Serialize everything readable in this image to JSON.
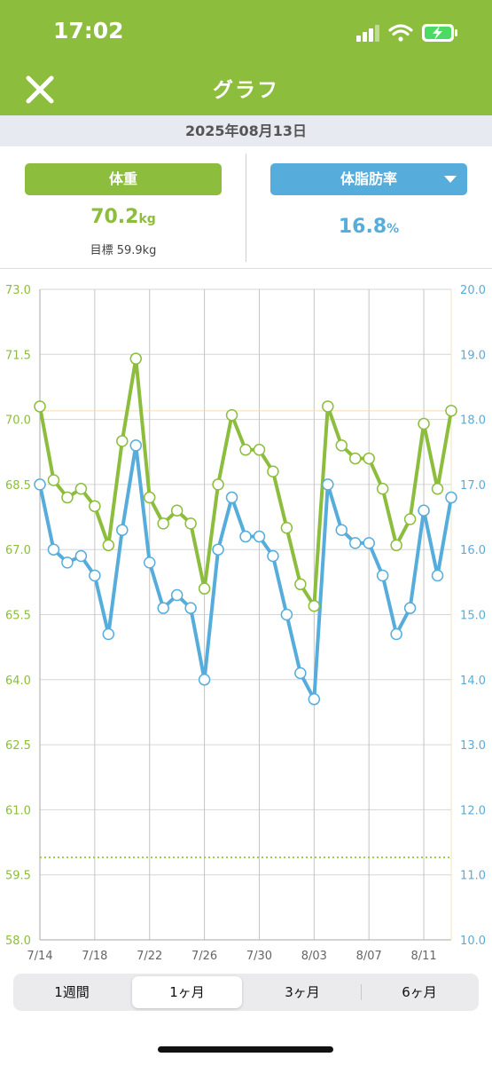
{
  "status_bar": {
    "time": "17:02",
    "icons": [
      "signal-icon",
      "wifi-icon",
      "battery-charging-icon"
    ]
  },
  "nav": {
    "title": "グラフ",
    "close_icon": "close-icon"
  },
  "date": "2025年08月13日",
  "weight": {
    "label": "体重",
    "value": "70.2",
    "unit": "kg",
    "target": "目標 59.9kg"
  },
  "body_fat": {
    "label": "体脂肪率",
    "value": "16.8",
    "unit": "%"
  },
  "colors": {
    "green": "#8cbd3c",
    "blue": "#56addc"
  },
  "period_tabs": [
    {
      "label": "1週間",
      "selected": false
    },
    {
      "label": "1ヶ月",
      "selected": true
    },
    {
      "label": "3ヶ月",
      "selected": false
    },
    {
      "label": "6ヶ月",
      "selected": false
    }
  ],
  "chart_data": {
    "type": "line",
    "x": [
      "7/14",
      "7/15",
      "7/16",
      "7/17",
      "7/18",
      "7/19",
      "7/20",
      "7/21",
      "7/22",
      "7/23",
      "7/24",
      "7/25",
      "7/26",
      "7/27",
      "7/28",
      "7/29",
      "7/30",
      "7/31",
      "8/01",
      "8/02",
      "8/03",
      "8/04",
      "8/05",
      "8/06",
      "8/07",
      "8/08",
      "8/09",
      "8/10",
      "8/11",
      "8/12",
      "8/13"
    ],
    "x_tick_labels": [
      "7/14",
      "7/18",
      "7/22",
      "7/26",
      "7/30",
      "8/03",
      "8/07",
      "8/11"
    ],
    "left_axis": {
      "ticks": [
        "73.0",
        "71.5",
        "70.0",
        "68.5",
        "67.0",
        "65.5",
        "64.0",
        "62.5",
        "61.0",
        "59.5",
        "58.0"
      ],
      "ylim": [
        58.0,
        73.0
      ]
    },
    "right_axis": {
      "ticks": [
        "20.0",
        "19.0",
        "18.0",
        "17.0",
        "16.0",
        "15.0",
        "14.0",
        "13.0",
        "12.0",
        "11.0",
        "10.0"
      ],
      "ylim": [
        10.0,
        20.0
      ]
    },
    "target_weight": 59.9,
    "grid": true,
    "series": [
      {
        "axis": "left",
        "color": "#8cbd3c",
        "values": [
          70.3,
          68.6,
          68.2,
          68.4,
          68.0,
          67.1,
          69.5,
          71.4,
          68.2,
          67.6,
          67.9,
          67.6,
          66.1,
          68.5,
          70.1,
          69.3,
          69.3,
          68.8,
          67.5,
          66.2,
          65.7,
          70.3,
          69.4,
          69.1,
          69.1,
          68.4,
          67.1,
          67.7,
          69.9,
          68.4,
          70.2
        ]
      },
      {
        "axis": "right",
        "color": "#56addc",
        "values": [
          17.0,
          16.0,
          15.8,
          15.9,
          15.6,
          14.7,
          16.3,
          17.6,
          15.8,
          15.1,
          15.3,
          15.1,
          14.0,
          16.0,
          16.8,
          16.2,
          16.2,
          15.9,
          15.0,
          14.1,
          13.7,
          17.0,
          16.3,
          16.1,
          16.1,
          15.6,
          14.7,
          15.1,
          16.6,
          15.6,
          16.8
        ]
      }
    ]
  }
}
